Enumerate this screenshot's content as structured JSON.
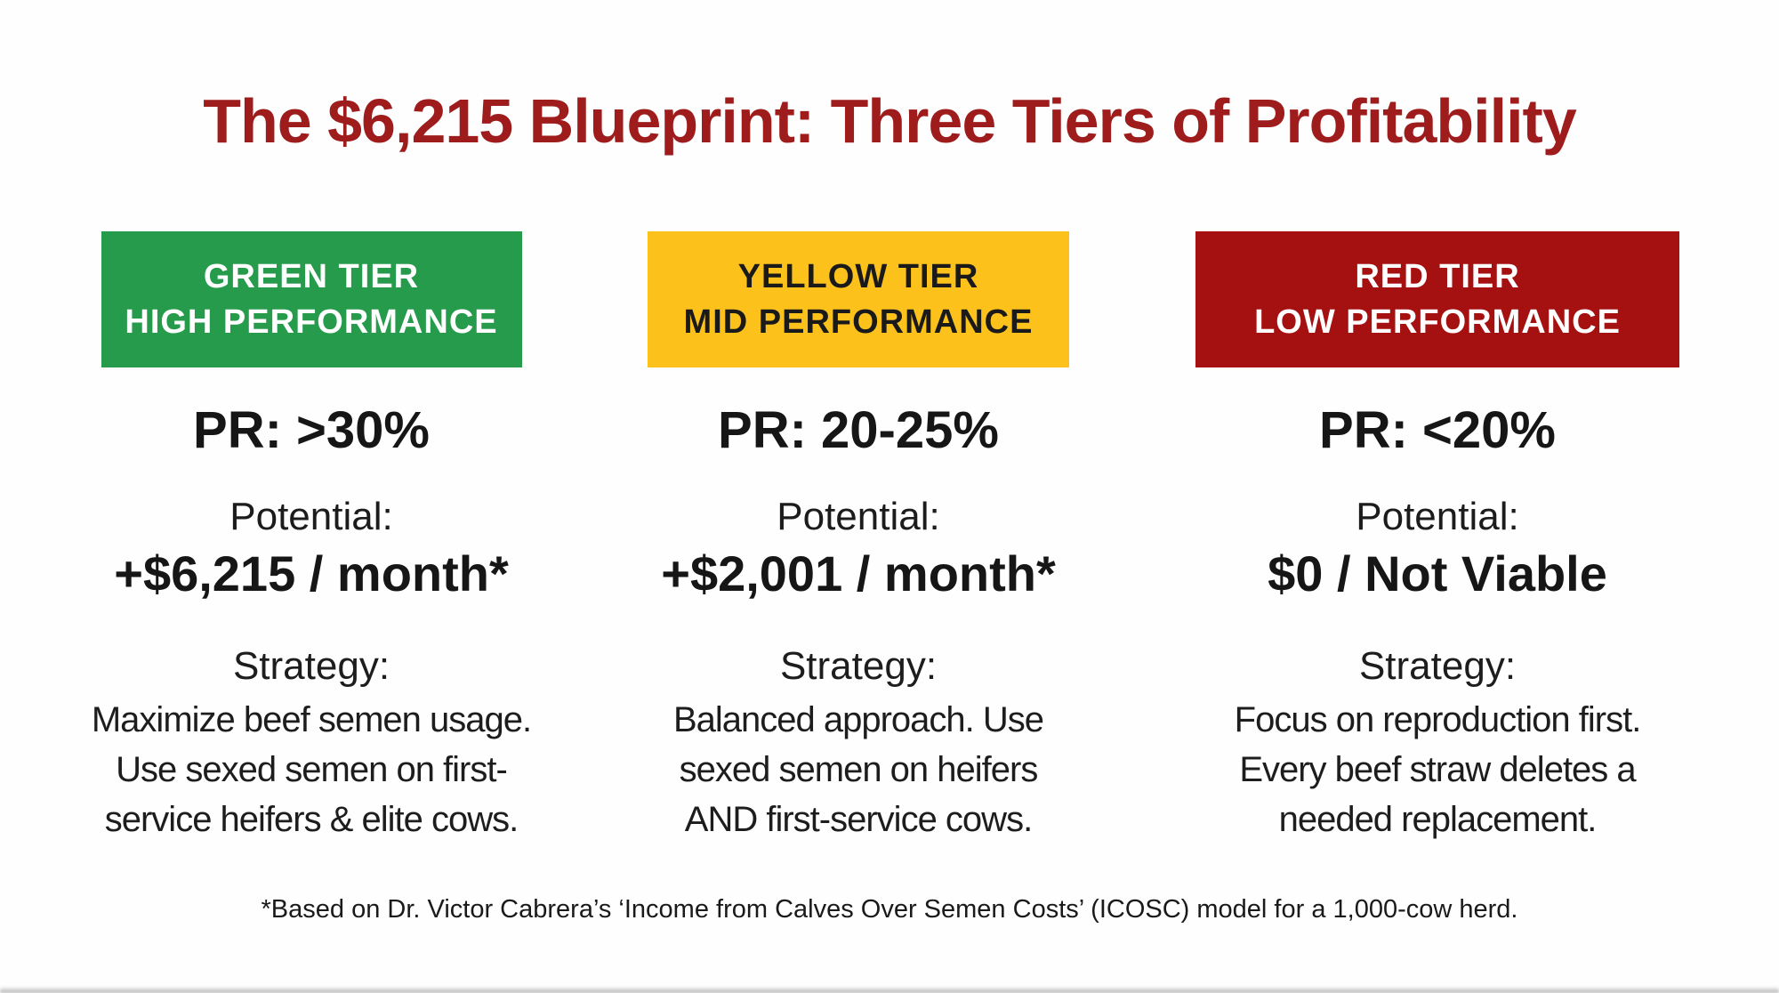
{
  "title": {
    "text": "The $6,215 Blueprint: Three Tiers of Profitability",
    "color": "#9E1C1C"
  },
  "tiers": [
    {
      "id": "green",
      "header": "GREEN TIER\nHIGH PERFORMANCE",
      "header_bg": "#259B4B",
      "header_fg": "#FFFFFF",
      "pr": "PR: >30%",
      "potential_label": "Potential:",
      "potential_value": "+$6,215 / month*",
      "strategy_label": "Strategy:",
      "strategy_text": "Maximize beef semen usage.\nUse sexed semen on first-\nservice heifers & elite cows."
    },
    {
      "id": "yellow",
      "header": "YELLOW TIER\nMID PERFORMANCE",
      "header_bg": "#FCC21B",
      "header_fg": "#1A1A1A",
      "pr": "PR: 20-25%",
      "potential_label": "Potential:",
      "potential_value": "+$2,001 / month*",
      "strategy_label": "Strategy:",
      "strategy_text": "Balanced approach. Use\nsexed semen on heifers\nAND first-service cows."
    },
    {
      "id": "red",
      "header": "RED TIER\nLOW PERFORMANCE",
      "header_bg": "#A51111",
      "header_fg": "#FFFFFF",
      "pr": "PR: <20%",
      "potential_label": "Potential:",
      "potential_value": "$0 / Not Viable",
      "strategy_label": "Strategy:",
      "strategy_text": "Focus on reproduction first.\nEvery beef straw deletes a\nneeded replacement."
    }
  ],
  "footnote": "*Based on Dr. Victor Cabrera’s ‘Income from Calves Over Semen Costs’ (ICOSC) model for a 1,000-cow herd."
}
